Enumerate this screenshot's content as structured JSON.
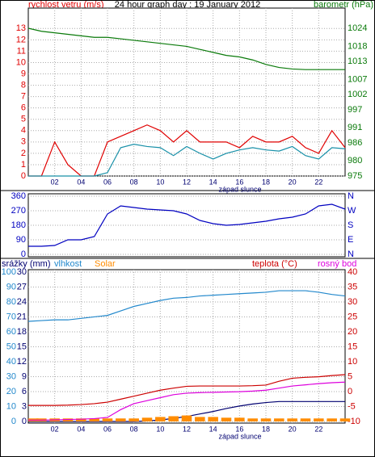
{
  "chart_data": [
    {
      "type": "line",
      "title": "24 hour graph day : 19 January 2012",
      "ylabel": "rychlost vetru (m/s)",
      "y2label": "barometr (hPa)",
      "annotation": "západ slunce",
      "grid": true,
      "xlim": [
        0,
        24
      ],
      "xticks": [
        {
          "value": 2,
          "label": "02"
        },
        {
          "value": 4,
          "label": "04"
        },
        {
          "value": 6,
          "label": "06"
        },
        {
          "value": 8,
          "label": "08"
        },
        {
          "value": 10,
          "label": "10"
        },
        {
          "value": 12,
          "label": "12"
        },
        {
          "value": 14,
          "label": "14"
        },
        {
          "value": 16,
          "label": "16"
        },
        {
          "value": 18,
          "label": "18"
        },
        {
          "value": 20,
          "label": "20"
        },
        {
          "value": 22,
          "label": "22"
        }
      ],
      "ylim": [
        0,
        14.8
      ],
      "yticks": [
        0,
        1,
        2,
        3,
        4,
        5,
        6,
        7,
        8,
        9,
        10,
        11,
        12,
        13
      ],
      "y2lim": [
        975,
        1030.7
      ],
      "y2ticks": [
        975,
        980,
        986,
        991,
        997,
        1002,
        1007,
        1013,
        1018,
        1024
      ],
      "x": [
        0,
        1,
        2,
        3,
        4,
        5,
        6,
        7,
        8,
        9,
        10,
        11,
        12,
        13,
        14,
        15,
        16,
        17,
        18,
        19,
        20,
        21,
        22,
        23,
        24
      ],
      "series": [
        {
          "color": "#e00000",
          "values": [
            0,
            0,
            3,
            1,
            0,
            0,
            3,
            3.5,
            4,
            4.5,
            4,
            3,
            4,
            3,
            3,
            3,
            2.5,
            3.5,
            3,
            3,
            3.5,
            2.5,
            2,
            4,
            2.5
          ]
        },
        {
          "color": "#1890a8",
          "values": [
            0,
            0,
            0,
            0,
            0,
            0,
            0.3,
            2.5,
            2.8,
            2.6,
            2.5,
            1.8,
            2.6,
            2,
            1.5,
            2,
            2.3,
            2.5,
            2.3,
            2.2,
            2.6,
            1.8,
            1.5,
            2.5,
            2.4
          ]
        },
        {
          "color": "#0a7a0a",
          "axis": "y2",
          "values": [
            1024,
            1023,
            1022.5,
            1022,
            1021.5,
            1021,
            1021,
            1020.5,
            1020,
            1019.5,
            1019,
            1018.5,
            1018,
            1017,
            1016,
            1015,
            1014.5,
            1013.5,
            1012,
            1011,
            1010.5,
            1010.3,
            1010.3,
            1010.3,
            1010.3
          ]
        }
      ]
    },
    {
      "type": "line",
      "grid": true,
      "xlim": [
        0,
        24
      ],
      "ylim": [
        -15,
        375
      ],
      "yticks": [
        0,
        90,
        180,
        270,
        360
      ],
      "y2lim": [
        -15,
        375
      ],
      "y2ticks": [
        {
          "value": 0,
          "label": "N"
        },
        {
          "value": 90,
          "label": "E"
        },
        {
          "value": 180,
          "label": "S"
        },
        {
          "value": 270,
          "label": "W"
        },
        {
          "value": 360,
          "label": "N"
        }
      ],
      "x": [
        0,
        1,
        2,
        3,
        4,
        5,
        6,
        7,
        8,
        9,
        10,
        11,
        12,
        13,
        14,
        15,
        16,
        17,
        18,
        19,
        20,
        21,
        22,
        23,
        24
      ],
      "series": [
        {
          "color": "#0000c0",
          "values": [
            50,
            50,
            55,
            90,
            90,
            110,
            250,
            300,
            290,
            280,
            275,
            270,
            250,
            210,
            190,
            180,
            185,
            195,
            205,
            220,
            230,
            250,
            300,
            310,
            280
          ]
        }
      ]
    },
    {
      "type": "line",
      "grid": true,
      "annotation": "západ slunce",
      "xlim": [
        0,
        24
      ],
      "xticks": [
        {
          "value": 2,
          "label": "02"
        },
        {
          "value": 4,
          "label": "04"
        },
        {
          "value": 6,
          "label": "06"
        },
        {
          "value": 8,
          "label": "08"
        },
        {
          "value": 10,
          "label": "10"
        },
        {
          "value": 12,
          "label": "12"
        },
        {
          "value": 14,
          "label": "14"
        },
        {
          "value": 16,
          "label": "16"
        },
        {
          "value": 18,
          "label": "18"
        },
        {
          "value": 20,
          "label": "20"
        },
        {
          "value": 22,
          "label": "22"
        }
      ],
      "ylim": [
        -1.1,
        101.6
      ],
      "yticks": [
        0,
        10,
        20,
        30,
        40,
        50,
        60,
        70,
        80,
        90,
        100
      ],
      "y3lim": [
        -0.33,
        30.5
      ],
      "y3ticks": [
        0,
        3,
        6,
        9,
        12,
        15,
        18,
        21,
        24,
        27,
        30
      ],
      "y2lim": [
        -10.5,
        40.8
      ],
      "y2ticks": [
        -10,
        -5,
        0,
        5,
        10,
        15,
        20,
        25,
        30,
        35,
        40
      ],
      "x": [
        0,
        1,
        2,
        3,
        4,
        5,
        6,
        7,
        8,
        9,
        10,
        11,
        12,
        13,
        14,
        15,
        16,
        17,
        18,
        19,
        20,
        21,
        22,
        23,
        24
      ],
      "series": [
        {
          "name": "srážky (mm)",
          "color": "#000070",
          "axis": "y3",
          "values": [
            0,
            0,
            0,
            0,
            0,
            0,
            0,
            0,
            0,
            0.1,
            0.3,
            0.6,
            1,
            1.5,
            2,
            2.6,
            3.1,
            3.5,
            3.8,
            4,
            4,
            4,
            4,
            4,
            4
          ]
        },
        {
          "name": "vlhkost",
          "color": "#2288cc",
          "values": [
            67,
            67.5,
            68,
            68,
            69,
            70,
            71,
            74,
            77,
            79,
            81,
            82.5,
            83,
            84,
            84.5,
            85,
            85.5,
            86,
            86.5,
            87.5,
            87.5,
            87.5,
            86.5,
            85,
            84
          ]
        },
        {
          "name": "Solar",
          "color": "#ff8c00",
          "kind": "bar",
          "values": [
            2,
            2,
            2,
            2,
            2,
            2,
            2,
            2,
            2,
            2.5,
            3,
            3.5,
            4,
            3,
            3,
            2.5,
            2.5,
            2,
            2,
            2,
            2,
            2,
            2,
            2,
            2
          ]
        },
        {
          "name": "teplota (°C)",
          "color": "#cc0000",
          "axis": "y2",
          "values": [
            -4.6,
            -4.6,
            -4.6,
            -4.5,
            -4.3,
            -4,
            -3.5,
            -2.5,
            -1.5,
            -0.5,
            0.5,
            1.2,
            1.8,
            1.9,
            1.9,
            1.9,
            1.9,
            2,
            2.2,
            3.5,
            4.5,
            4.8,
            5,
            5.4,
            5.7
          ]
        },
        {
          "name": "rosný bod",
          "color": "#dd00dd",
          "axis": "y2",
          "values": [
            -9.5,
            -9.5,
            -9.4,
            -9.3,
            -9.2,
            -9,
            -8.6,
            -6,
            -4,
            -3,
            -2,
            -1,
            -0.5,
            -0.3,
            -0.2,
            -0.1,
            0,
            0.2,
            0.5,
            1.2,
            1.9,
            2.3,
            2.7,
            3,
            3.2
          ]
        }
      ]
    }
  ]
}
